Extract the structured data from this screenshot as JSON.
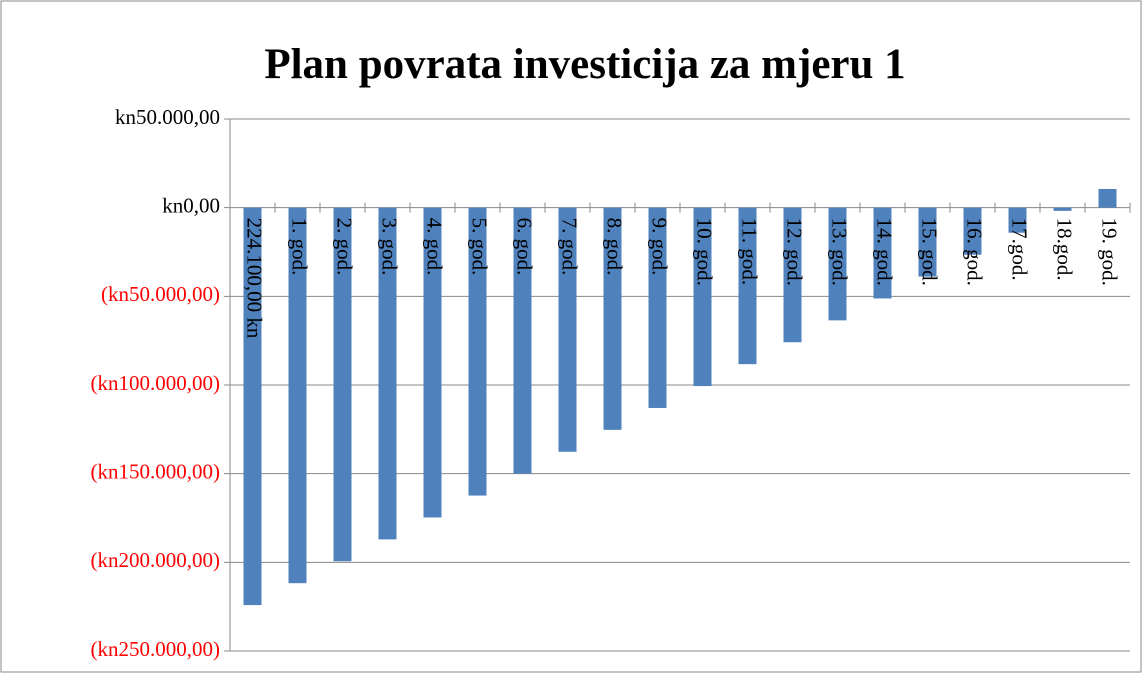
{
  "chart_data": {
    "type": "bar",
    "title": "Plan povrata investicija za mjeru 1",
    "categories": [
      "224.100,00 kn",
      "1. god.",
      "2. god.",
      "3. god.",
      "4. god.",
      "5. god.",
      "6. god.",
      "7. god.",
      "8. god.",
      "9. god.",
      "10. god.",
      "11. god.",
      "12. god.",
      "13. god.",
      "14. god.",
      "15. god.",
      "16. god.",
      "17.god.",
      "18.god.",
      "19. god."
    ],
    "values": [
      -224100,
      -211750,
      -199400,
      -187050,
      -174700,
      -162350,
      -150000,
      -137650,
      -125300,
      -112950,
      -100600,
      -88250,
      -75900,
      -63550,
      -51200,
      -38850,
      -26500,
      -14150,
      -1800,
      10550
    ],
    "color": "#4f81bd",
    "ylim": [
      -250000,
      50000
    ],
    "yticks": [
      {
        "value": -250000,
        "label": "(kn250.000,00)"
      },
      {
        "value": -200000,
        "label": "(kn200.000,00)"
      },
      {
        "value": -150000,
        "label": "(kn150.000,00)"
      },
      {
        "value": -100000,
        "label": "(kn100.000,00)"
      },
      {
        "value": -50000,
        "label": "(kn50.000,00)"
      },
      {
        "value": 0,
        "label": "kn0,00"
      },
      {
        "value": 50000,
        "label": "kn50.000,00"
      }
    ],
    "tick_color": "#000000",
    "negative_tick_color": "#ff0000",
    "grid": true
  }
}
